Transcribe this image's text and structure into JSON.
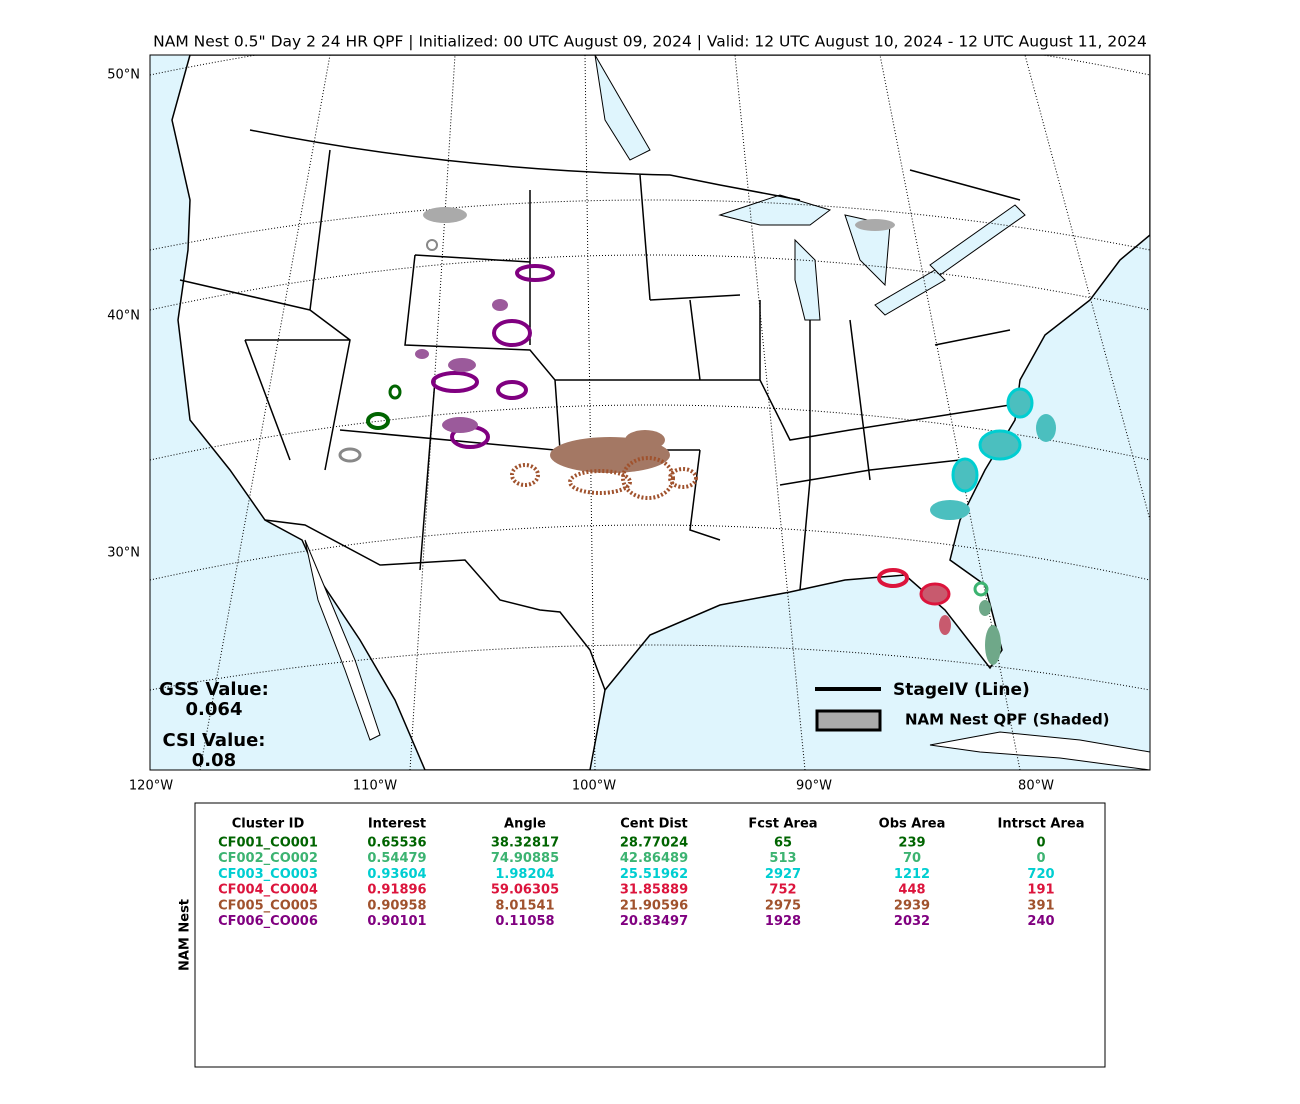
{
  "title": "NAM Nest 0.5\" Day 2 24 HR QPF | Initialized: 00 UTC August 09, 2024 | Valid: 12 UTC August 10, 2024 - 12 UTC August 11, 2024",
  "map": {
    "lat_labels": [
      "50°N",
      "40°N",
      "30°N"
    ],
    "lon_labels": [
      "120°W",
      "110°W",
      "100°W",
      "90°W",
      "80°W"
    ],
    "gss_label": "GSS Value:",
    "gss_value": "0.064",
    "csi_label": "CSI Value:",
    "csi_value": "0.08",
    "legend": [
      "StageIV (Line)",
      "NAM Nest QPF (Shaded)"
    ]
  },
  "table": {
    "side_label": "NAM Nest",
    "columns": [
      "Cluster ID",
      "Interest",
      "Angle",
      "Cent Dist",
      "Fcst Area",
      "Obs Area",
      "Intrsct Area"
    ],
    "colors": [
      "#006400",
      "#3cb371",
      "#00ced1",
      "#dc143c",
      "#a0522d",
      "#800080"
    ],
    "rows": [
      [
        "CF001_CO001",
        "0.65536",
        "38.32817",
        "28.77024",
        "65",
        "239",
        "0"
      ],
      [
        "CF002_CO002",
        "0.54479",
        "74.90885",
        "42.86489",
        "513",
        "70",
        "0"
      ],
      [
        "CF003_CO003",
        "0.93604",
        "1.98204",
        "25.51962",
        "2927",
        "1212",
        "720"
      ],
      [
        "CF004_CO004",
        "0.91896",
        "59.06305",
        "31.85889",
        "752",
        "448",
        "191"
      ],
      [
        "CF005_CO005",
        "0.90958",
        "8.01541",
        "21.90596",
        "2975",
        "2939",
        "391"
      ],
      [
        "CF006_CO006",
        "0.90101",
        "0.11058",
        "20.83497",
        "1928",
        "2032",
        "240"
      ]
    ]
  }
}
